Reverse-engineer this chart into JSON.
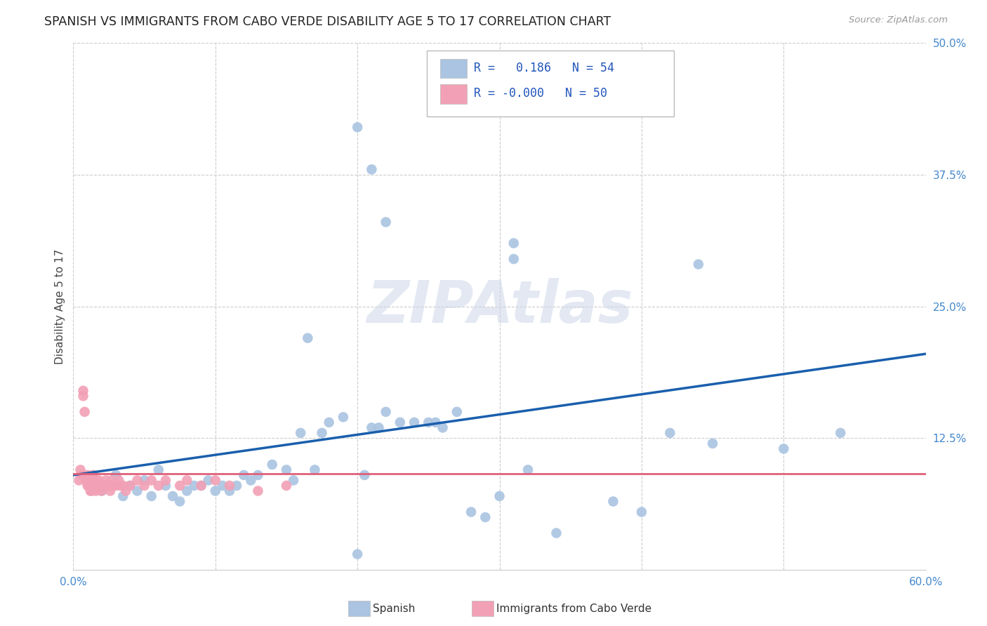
{
  "title": "SPANISH VS IMMIGRANTS FROM CABO VERDE DISABILITY AGE 5 TO 17 CORRELATION CHART",
  "source": "Source: ZipAtlas.com",
  "ylabel": "Disability Age 5 to 17",
  "xlim": [
    0.0,
    0.6
  ],
  "ylim": [
    0.0,
    0.5
  ],
  "xticks": [
    0.0,
    0.6
  ],
  "xticklabels": [
    "0.0%",
    "60.0%"
  ],
  "yticks": [
    0.0,
    0.125,
    0.25,
    0.375,
    0.5
  ],
  "yticklabels_right": [
    "",
    "12.5%",
    "25.0%",
    "37.5%",
    "50.0%"
  ],
  "legend_R1": "0.186",
  "legend_N1": "54",
  "legend_R2": "-0.000",
  "legend_N2": "50",
  "color_spanish": "#aac4e2",
  "color_cabo_verde": "#f2a0b5",
  "line_color_spanish": "#1a5fad",
  "line_color_cabo_verde": "#e0607a",
  "watermark_text": "ZIPAtlas",
  "spanish_x": [
    0.015,
    0.02,
    0.025,
    0.03,
    0.035,
    0.04,
    0.045,
    0.05,
    0.055,
    0.06,
    0.065,
    0.07,
    0.075,
    0.08,
    0.085,
    0.09,
    0.095,
    0.1,
    0.105,
    0.11,
    0.115,
    0.12,
    0.125,
    0.13,
    0.14,
    0.15,
    0.155,
    0.16,
    0.17,
    0.175,
    0.18,
    0.19,
    0.2,
    0.205,
    0.21,
    0.215,
    0.22,
    0.23,
    0.24,
    0.25,
    0.255,
    0.26,
    0.27,
    0.28,
    0.29,
    0.3,
    0.32,
    0.34,
    0.38,
    0.4,
    0.42,
    0.45,
    0.5,
    0.54
  ],
  "spanish_y": [
    0.085,
    0.075,
    0.08,
    0.09,
    0.07,
    0.08,
    0.075,
    0.085,
    0.07,
    0.095,
    0.08,
    0.07,
    0.065,
    0.075,
    0.08,
    0.08,
    0.085,
    0.075,
    0.08,
    0.075,
    0.08,
    0.09,
    0.085,
    0.09,
    0.1,
    0.095,
    0.085,
    0.13,
    0.095,
    0.13,
    0.14,
    0.145,
    0.015,
    0.09,
    0.135,
    0.135,
    0.15,
    0.14,
    0.14,
    0.14,
    0.14,
    0.135,
    0.15,
    0.055,
    0.05,
    0.07,
    0.095,
    0.035,
    0.065,
    0.055,
    0.13,
    0.12,
    0.115,
    0.13
  ],
  "spanish_y_outliers_x": [
    0.165,
    0.2,
    0.21,
    0.22,
    0.31,
    0.31,
    0.44
  ],
  "spanish_y_outliers_y": [
    0.22,
    0.42,
    0.38,
    0.33,
    0.295,
    0.31,
    0.29
  ],
  "cabo_verde_x": [
    0.004,
    0.005,
    0.006,
    0.007,
    0.007,
    0.008,
    0.009,
    0.01,
    0.01,
    0.011,
    0.011,
    0.012,
    0.012,
    0.013,
    0.013,
    0.014,
    0.014,
    0.015,
    0.016,
    0.016,
    0.017,
    0.018,
    0.018,
    0.019,
    0.02,
    0.021,
    0.022,
    0.023,
    0.025,
    0.026,
    0.027,
    0.028,
    0.03,
    0.032,
    0.033,
    0.035,
    0.037,
    0.04,
    0.045,
    0.05,
    0.055,
    0.06,
    0.065,
    0.075,
    0.08,
    0.09,
    0.1,
    0.11,
    0.13,
    0.15
  ],
  "cabo_verde_y": [
    0.085,
    0.095,
    0.09,
    0.17,
    0.165,
    0.15,
    0.085,
    0.09,
    0.08,
    0.085,
    0.08,
    0.08,
    0.075,
    0.075,
    0.085,
    0.08,
    0.09,
    0.08,
    0.075,
    0.085,
    0.08,
    0.08,
    0.085,
    0.08,
    0.075,
    0.08,
    0.08,
    0.085,
    0.08,
    0.075,
    0.085,
    0.08,
    0.08,
    0.085,
    0.08,
    0.08,
    0.075,
    0.08,
    0.085,
    0.08,
    0.085,
    0.08,
    0.085,
    0.08,
    0.085,
    0.08,
    0.085,
    0.08,
    0.075,
    0.08
  ],
  "trend_spanish_x0": 0.0,
  "trend_spanish_y0": 0.09,
  "trend_spanish_x1": 0.6,
  "trend_spanish_y1": 0.205,
  "trend_cabo_verde_x0": 0.0,
  "trend_cabo_verde_y0": 0.091,
  "trend_cabo_verde_x1": 0.6,
  "trend_cabo_verde_y1": 0.091
}
